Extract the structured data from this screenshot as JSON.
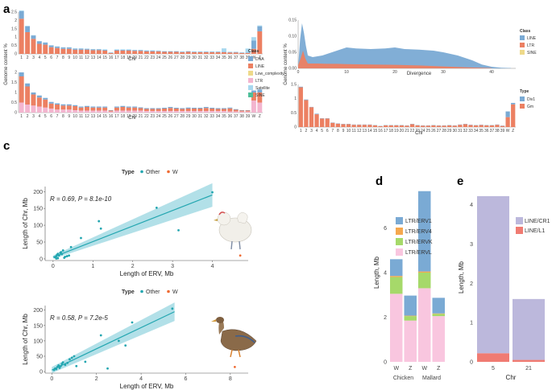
{
  "chart_data": [
    {
      "id": "a",
      "panel_label": "a",
      "type": "bar",
      "stacked": true,
      "categories": [
        "1",
        "2",
        "3",
        "4",
        "5",
        "6",
        "7",
        "8",
        "9",
        "10",
        "11",
        "12",
        "13",
        "14",
        "15",
        "16",
        "17",
        "18",
        "19",
        "20",
        "21",
        "22",
        "23",
        "24",
        "25",
        "26",
        "27",
        "28",
        "29",
        "30",
        "31",
        "32",
        "33",
        "34",
        "35",
        "36",
        "37",
        "38",
        "39",
        "W",
        "Z"
      ],
      "ylabel": "Genome content %",
      "xlabel": "Chr",
      "legend_title": "Class",
      "legend": [
        "DNA",
        "LINE",
        "Low_complexity",
        "LTR",
        "Satellite",
        "SINE"
      ],
      "colors": {
        "DNA": "#7aaad4",
        "LINE": "#ec8062",
        "Low_complexity": "#eed98a",
        "LTR": "#f3b5cf",
        "Satellite": "#a8d8ef",
        "SINE": "#4fbf9a"
      },
      "subplots": [
        {
          "ylim": [
            0,
            2.5
          ],
          "yticks": [
            0,
            0.5,
            1,
            1.5,
            2,
            2.5
          ],
          "yticklabels": [
            "0",
            "0.5",
            "1",
            "1.5",
            "2",
            "2.5"
          ],
          "series": [
            {
              "name": "LINE",
              "values": [
                2.1,
                1.3,
                0.9,
                0.6,
                0.55,
                0.4,
                0.35,
                0.3,
                0.3,
                0.25,
                0.25,
                0.25,
                0.22,
                0.22,
                0.2,
                0.05,
                0.2,
                0.2,
                0.2,
                0.18,
                0.18,
                0.15,
                0.15,
                0.15,
                0.12,
                0.12,
                0.12,
                0.1,
                0.12,
                0.1,
                0.1,
                0.1,
                0.1,
                0.1,
                0.1,
                0.08,
                0.08,
                0.05,
                0.05,
                0.3,
                1.35
              ]
            },
            {
              "name": "DNA",
              "values": [
                0.45,
                0.35,
                0.2,
                0.15,
                0.12,
                0.1,
                0.08,
                0.08,
                0.08,
                0.06,
                0.06,
                0.05,
                0.05,
                0.05,
                0.05,
                0.02,
                0.05,
                0.05,
                0.05,
                0.04,
                0.04,
                0.04,
                0.04,
                0.03,
                0.03,
                0.03,
                0.03,
                0.03,
                0.03,
                0.03,
                0.03,
                0.03,
                0.03,
                0.03,
                0.03,
                0.03,
                0.03,
                0.02,
                0.02,
                0.5,
                0.3
              ]
            },
            {
              "name": "Satellite",
              "values": [
                0.05,
                0.03,
                0.02,
                0.02,
                0.02,
                0.02,
                0.02,
                0.02,
                0.02,
                0.02,
                0.02,
                0.02,
                0.02,
                0.02,
                0.02,
                0.02,
                0.02,
                0.02,
                0.02,
                0.02,
                0.02,
                0.02,
                0.02,
                0.02,
                0.02,
                0.02,
                0.02,
                0.02,
                0.02,
                0.02,
                0.02,
                0.02,
                0.02,
                0.02,
                0.2,
                0.02,
                0.02,
                0.02,
                0.25,
                0.2,
                0.05
              ]
            }
          ]
        },
        {
          "ylim": [
            0,
            2
          ],
          "yticks": [
            0,
            0.5,
            1,
            1.5,
            2
          ],
          "yticklabels": [
            "0",
            "0.5",
            "1",
            "1.5",
            "2"
          ],
          "series": [
            {
              "name": "LTR",
              "values": [
                0.5,
                0.4,
                0.35,
                0.3,
                0.25,
                0.2,
                0.15,
                0.15,
                0.15,
                0.12,
                0.1,
                0.1,
                0.1,
                0.1,
                0.1,
                0.05,
                0.1,
                0.1,
                0.1,
                0.1,
                0.1,
                0.08,
                0.08,
                0.08,
                0.08,
                0.08,
                0.08,
                0.08,
                0.08,
                0.08,
                0.08,
                0.08,
                0.08,
                0.08,
                0.08,
                0.06,
                0.06,
                0.05,
                0.05,
                0.6,
                0.5
              ]
            },
            {
              "name": "LINE",
              "values": [
                1.3,
                0.9,
                0.55,
                0.45,
                0.4,
                0.25,
                0.25,
                0.2,
                0.2,
                0.2,
                0.15,
                0.18,
                0.15,
                0.15,
                0.15,
                0.05,
                0.15,
                0.18,
                0.15,
                0.15,
                0.12,
                0.1,
                0.1,
                0.1,
                0.12,
                0.15,
                0.12,
                0.1,
                0.12,
                0.12,
                0.12,
                0.15,
                0.12,
                0.1,
                0.1,
                0.15,
                0.08,
                0.05,
                0.05,
                0.4,
                0.5
              ]
            },
            {
              "name": "DNA",
              "values": [
                0.2,
                0.15,
                0.1,
                0.1,
                0.08,
                0.08,
                0.06,
                0.06,
                0.06,
                0.05,
                0.05,
                0.05,
                0.05,
                0.05,
                0.05,
                0.02,
                0.05,
                0.05,
                0.05,
                0.05,
                0.04,
                0.04,
                0.04,
                0.04,
                0.04,
                0.05,
                0.04,
                0.04,
                0.05,
                0.04,
                0.04,
                0.05,
                0.04,
                0.04,
                0.04,
                0.04,
                0.03,
                0.02,
                0.02,
                0.1,
                0.15
              ]
            }
          ]
        }
      ]
    },
    {
      "id": "b_hist",
      "panel_label": "b",
      "type": "area",
      "ylabel": "Genome content %",
      "xlabel": "Divergence",
      "xlim": [
        0,
        45
      ],
      "xticks": [
        0,
        10,
        20,
        30,
        40
      ],
      "xticklabels": [
        "0",
        "10",
        "20",
        "30",
        "40"
      ],
      "ylim": [
        0,
        0.15
      ],
      "yticks": [
        0,
        0.05,
        0.1,
        0.15
      ],
      "yticklabels": [
        "0.00",
        "0.05",
        "0.10",
        "0.15"
      ],
      "legend_title": "Class",
      "legend": [
        "LINE",
        "LTR",
        "SINE"
      ],
      "colors": {
        "LINE": "#7aaad4",
        "LTR": "#ec8062",
        "SINE": "#eed98a"
      },
      "series": [
        {
          "name": "LTR",
          "x": [
            0,
            0.5,
            1,
            1.5,
            2,
            3,
            4,
            6,
            8,
            10,
            15,
            20,
            25,
            30,
            35,
            40
          ],
          "values": [
            0.01,
            0.03,
            0.055,
            0.03,
            0.015,
            0.015,
            0.015,
            0.014,
            0.014,
            0.013,
            0.012,
            0.011,
            0.009,
            0.006,
            0.003,
            0.001
          ]
        },
        {
          "name": "LINE",
          "x": [
            0,
            0.4,
            0.8,
            1.2,
            1.6,
            2,
            3,
            5,
            8,
            10,
            12,
            15,
            18,
            20,
            22,
            25,
            28,
            30,
            33,
            36,
            38,
            40,
            42,
            44
          ],
          "values": [
            0.005,
            0.09,
            0.14,
            0.11,
            0.07,
            0.04,
            0.035,
            0.04,
            0.055,
            0.065,
            0.062,
            0.06,
            0.062,
            0.065,
            0.06,
            0.058,
            0.055,
            0.05,
            0.04,
            0.025,
            0.012,
            0.005,
            0.002,
            0.001
          ]
        }
      ]
    },
    {
      "id": "b_bar",
      "type": "bar",
      "stacked": true,
      "ylabel": "Genome content %",
      "xlabel": "Chr",
      "categories": [
        "1",
        "2",
        "3",
        "4",
        "5",
        "6",
        "7",
        "8",
        "9",
        "10",
        "11",
        "12",
        "13",
        "14",
        "15",
        "16",
        "17",
        "18",
        "19",
        "20",
        "21",
        "22",
        "23",
        "24",
        "25",
        "26",
        "27",
        "28",
        "29",
        "30",
        "31",
        "32",
        "33",
        "34",
        "35",
        "36",
        "37",
        "38",
        "39",
        "W",
        "Z"
      ],
      "ylim": [
        0,
        1.5
      ],
      "yticks": [
        0,
        0.5,
        1,
        1.5
      ],
      "yticklabels": [
        "0",
        "0.5",
        "1",
        "1.5"
      ],
      "legend_title": "Type",
      "legend": [
        "Div1",
        "Gm"
      ],
      "colors": {
        "Div1": "#7aaad4",
        "Gm": "#ec8062"
      },
      "series": [
        {
          "name": "Gm",
          "values": [
            1.4,
            0.95,
            0.7,
            0.45,
            0.3,
            0.3,
            0.15,
            0.12,
            0.1,
            0.1,
            0.08,
            0.08,
            0.08,
            0.08,
            0.06,
            0.03,
            0.06,
            0.06,
            0.06,
            0.06,
            0.05,
            0.1,
            0.06,
            0.05,
            0.05,
            0.06,
            0.05,
            0.05,
            0.06,
            0.05,
            0.08,
            0.1,
            0.07,
            0.06,
            0.07,
            0.06,
            0.06,
            0.08,
            0.04,
            0.35,
            0.8
          ]
        },
        {
          "name": "Div1",
          "values": [
            0.02,
            0.02,
            0.01,
            0.02,
            0.01,
            0.01,
            0.01,
            0.01,
            0.01,
            0.01,
            0.01,
            0.01,
            0.01,
            0.01,
            0.01,
            0.01,
            0.01,
            0.01,
            0.01,
            0.01,
            0.01,
            0.01,
            0.01,
            0.01,
            0.01,
            0.01,
            0.01,
            0.01,
            0.01,
            0.01,
            0.01,
            0.01,
            0.01,
            0.01,
            0.01,
            0.01,
            0.01,
            0.01,
            0.01,
            0.2,
            0.05
          ]
        }
      ]
    },
    {
      "id": "c_top",
      "panel_label": "c",
      "type": "scatter",
      "legend_title": "Type",
      "legend": [
        "Other",
        "W"
      ],
      "colors": {
        "Other": "#23a6b0",
        "W": "#ef6b33",
        "band": "#9fd8e2"
      },
      "xlabel": "Length of ERV, Mb",
      "ylabel": "Length of Chr, Mb",
      "xlim": [
        -0.2,
        4.9
      ],
      "ylim": [
        -5,
        215
      ],
      "xticks": [
        0,
        1,
        2,
        3,
        4
      ],
      "xticklabels": [
        "0",
        "1",
        "2",
        "3",
        "4"
      ],
      "yticks": [
        0,
        50,
        100,
        150,
        200
      ],
      "yticklabels": [
        "0",
        "50",
        "100",
        "150",
        "200"
      ],
      "annotation_r": "R = 0.69,",
      "annotation_p": "P = 8.1e-10",
      "fit": {
        "x": [
          0,
          4
        ],
        "y": [
          5,
          190
        ],
        "lower": [
          0,
          155
        ],
        "upper": [
          10,
          225
        ]
      },
      "points_other": {
        "x": [
          0.05,
          0.08,
          0.1,
          0.12,
          0.15,
          0.18,
          0.2,
          0.22,
          0.25,
          0.3,
          0.35,
          0.28,
          0.12,
          0.08,
          0.4,
          0.45,
          0.7,
          1.15,
          1.2,
          2.6,
          3.15,
          4.0
        ],
        "y": [
          5,
          8,
          12,
          15,
          10,
          18,
          20,
          14,
          25,
          6,
          8,
          3,
          2,
          1,
          10,
          35,
          62,
          112,
          90,
          152,
          85,
          198
        ]
      },
      "points_w": {
        "x": [
          4.7
        ],
        "y": [
          10
        ]
      }
    },
    {
      "id": "c_bottom",
      "type": "scatter",
      "legend_title": "Type",
      "legend": [
        "Other",
        "W"
      ],
      "colors": {
        "Other": "#23a6b0",
        "W": "#ef6b33",
        "band": "#9fd8e2"
      },
      "xlabel": "Length of ERV, Mb",
      "ylabel": "Length of Chr, Mb",
      "xlim": [
        -0.3,
        8.8
      ],
      "ylim": [
        -5,
        215
      ],
      "xticks": [
        0,
        2,
        4,
        6,
        8
      ],
      "xticklabels": [
        "0",
        "2",
        "4",
        "6",
        "8"
      ],
      "yticks": [
        0,
        50,
        100,
        150,
        200
      ],
      "yticklabels": [
        "0",
        "50",
        "100",
        "150",
        "200"
      ],
      "annotation_r": "R = 0.58,",
      "annotation_p": "P = 7.2e-5",
      "fit": {
        "x": [
          0,
          5.5
        ],
        "y": [
          5,
          195
        ],
        "lower": [
          -5,
          165
        ],
        "upper": [
          15,
          225
        ]
      },
      "points_other": {
        "x": [
          0.1,
          0.15,
          0.2,
          0.25,
          0.3,
          0.35,
          0.4,
          0.45,
          0.5,
          0.6,
          0.7,
          0.8,
          0.9,
          1.0,
          1.1,
          1.5,
          2.2,
          2.5,
          3.0,
          3.3,
          3.6,
          5.4
        ],
        "y": [
          5,
          10,
          8,
          15,
          20,
          12,
          18,
          25,
          30,
          22,
          28,
          40,
          45,
          50,
          18,
          32,
          118,
          10,
          100,
          85,
          160,
          205
        ]
      },
      "points_w": {
        "x": [
          8.2
        ],
        "y": [
          15
        ]
      }
    },
    {
      "id": "d",
      "panel_label": "d",
      "type": "bar",
      "stacked": true,
      "categories": [
        "W",
        "Z",
        "W",
        "Z"
      ],
      "groups": [
        "Chicken",
        "Mallard"
      ],
      "ylabel": "Length, Mb",
      "ylim": [
        0,
        8
      ],
      "yticks": [
        0,
        2,
        4,
        6
      ],
      "yticklabels": [
        "0",
        "2",
        "4",
        "6"
      ],
      "legend": [
        "LTR/ERV1",
        "LTR/ERV4",
        "LTR/ERVK",
        "LTR/ERVL"
      ],
      "colors": {
        "LTR/ERV1": "#7aaad4",
        "LTR/ERV4": "#f5a84e",
        "LTR/ERVK": "#a6d96a",
        "LTR/ERVL": "#f9c6df"
      },
      "series": [
        {
          "name": "LTR/ERVL",
          "values": [
            3.05,
            1.85,
            3.3,
            2.05
          ]
        },
        {
          "name": "LTR/ERVK",
          "values": [
            0.75,
            0.2,
            0.7,
            0.1
          ]
        },
        {
          "name": "LTR/ERV4",
          "values": [
            0.05,
            0.02,
            0.05,
            0.02
          ]
        },
        {
          "name": "LTR/ERV1",
          "values": [
            0.75,
            0.9,
            3.6,
            0.7
          ]
        }
      ]
    },
    {
      "id": "e",
      "panel_label": "e",
      "type": "bar",
      "stacked": true,
      "categories": [
        "5",
        "21"
      ],
      "xlabel": "Chr",
      "ylabel": "Length, Mb",
      "ylim": [
        0,
        4.3
      ],
      "yticks": [
        0,
        1,
        2,
        3,
        4
      ],
      "yticklabels": [
        "0",
        "1",
        "2",
        "3",
        "4"
      ],
      "legend": [
        "LINE/CR1",
        "LINE/L1"
      ],
      "colors": {
        "LINE/CR1": "#bcb8dc",
        "LINE/L1": "#f07b72"
      },
      "series": [
        {
          "name": "LINE/L1",
          "values": [
            0.22,
            0.05
          ]
        },
        {
          "name": "LINE/CR1",
          "values": [
            4.0,
            1.55
          ]
        }
      ]
    }
  ]
}
